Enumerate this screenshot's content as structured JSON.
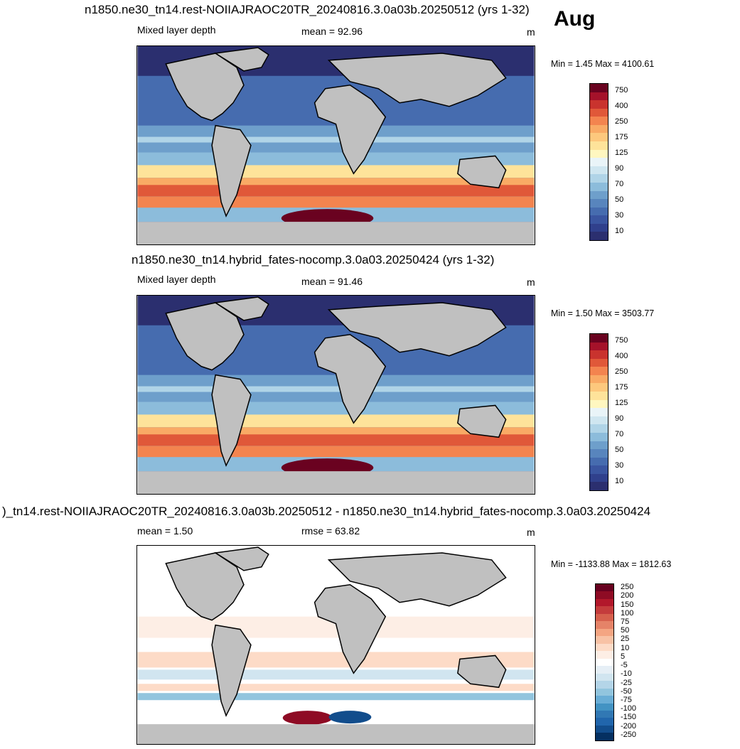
{
  "month": "Aug",
  "panels": [
    {
      "title": "n1850.ne30_tn14.rest-NOIIAJRAOC20TR_20240816.3.0a03b.20250512 (yrs 1-32)",
      "left_label": "Mixed layer depth",
      "center_label": "mean =  92.96",
      "units": "m",
      "minmax": "Min =   1.45 Max = 4100.61",
      "colorbar": {
        "ticks": [
          "750",
          "400",
          "250",
          "175",
          "125",
          "90",
          "70",
          "50",
          "30",
          "10"
        ],
        "colors": [
          "#6a0220",
          "#a5122a",
          "#c9332e",
          "#e05839",
          "#f3844f",
          "#f9aa65",
          "#fdc87d",
          "#fee39a",
          "#fff7c0",
          "#e9f4f8",
          "#cfe6f0",
          "#b0d4e7",
          "#8cbcdb",
          "#6e9fcb",
          "#5885bd",
          "#466caf",
          "#3a55a0",
          "#30408c",
          "#2b2f6f"
        ]
      }
    },
    {
      "title": "n1850.ne30_tn14.hybrid_fates-nocomp.3.0a03.20250424 (yrs 1-32)",
      "left_label": "Mixed layer depth",
      "center_label": "mean =  91.46",
      "units": "m",
      "minmax": "Min =   1.50 Max = 3503.77",
      "colorbar": {
        "ticks": [
          "750",
          "400",
          "250",
          "175",
          "125",
          "90",
          "70",
          "50",
          "30",
          "10"
        ],
        "colors": [
          "#6a0220",
          "#a5122a",
          "#c9332e",
          "#e05839",
          "#f3844f",
          "#f9aa65",
          "#fdc87d",
          "#fee39a",
          "#fff7c0",
          "#e9f4f8",
          "#cfe6f0",
          "#b0d4e7",
          "#8cbcdb",
          "#6e9fcb",
          "#5885bd",
          "#466caf",
          "#3a55a0",
          "#30408c",
          "#2b2f6f"
        ]
      }
    },
    {
      "title": ")_tn14.rest-NOIIAJRAOC20TR_20240816.3.0a03b.20250512 - n1850.ne30_tn14.hybrid_fates-nocomp.3.0a03.20250424",
      "left_label": "mean =   1.50",
      "center_label": "rmse =  63.82",
      "units": "m",
      "minmax": "Min = -1133.88 Max = 1812.63",
      "colorbar": {
        "ticks": [
          "250",
          "200",
          "150",
          "100",
          "75",
          "50",
          "25",
          "10",
          "5",
          "-5",
          "-10",
          "-25",
          "-50",
          "-75",
          "-100",
          "-150",
          "-200",
          "-250"
        ],
        "colors": [
          "#67001f",
          "#8e0b24",
          "#b2182b",
          "#c43c3c",
          "#d6604d",
          "#e58368",
          "#f4a582",
          "#f8c2a5",
          "#fddbc7",
          "#fdeee5",
          "#ffffff",
          "#e6eff6",
          "#d1e5f0",
          "#b4d5e8",
          "#92c5de",
          "#6aaed6",
          "#4393c3",
          "#3178b4",
          "#2166ac",
          "#124d8c",
          "#053061"
        ]
      }
    }
  ],
  "colors": {
    "land": "#c0c0c0",
    "deep_blue": "#2b2f6f",
    "mid_blue": "#4a64ab",
    "light_blue": "#8cbcdb",
    "pale": "#fde9b0",
    "orange": "#f3844f",
    "red": "#c9332e",
    "dark_red": "#6a0220"
  }
}
